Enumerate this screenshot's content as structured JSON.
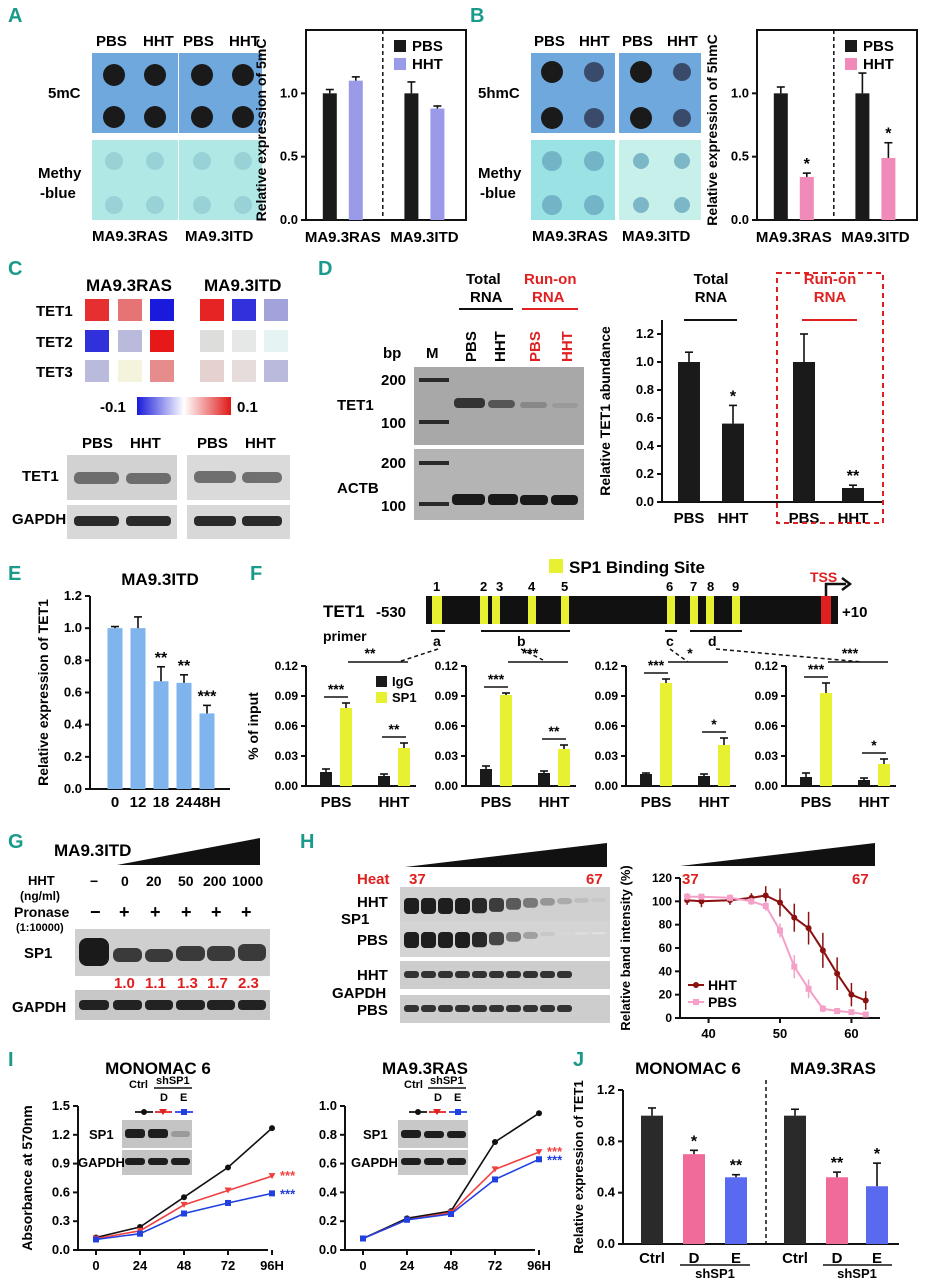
{
  "colors": {
    "panel_letter": "#1a9a8a",
    "dot_blue": "#6fa8dc",
    "dot_cyan": "#a8e4e4",
    "pbs": "#1a1a1a",
    "hht_purple": "#9a9ae8",
    "hht_pink": "#f08ab8",
    "bar_blue": "#7fb4ec",
    "sp1_yellow": "#e8f032",
    "red": "#e02020",
    "dark_red": "#8b1010",
    "light_pink": "#f4a0c8",
    "kd_d": "#f06a9a",
    "kd_e": "#5a6af0",
    "blue_curve": "#2040e0",
    "red_curve": "#f04040"
  },
  "panel_labels": {
    "a": "A",
    "b": "B",
    "c": "C",
    "d": "D",
    "e": "E",
    "f": "F",
    "g": "G",
    "h": "H",
    "i": "I",
    "j": "J"
  },
  "panelA": {
    "pbs1": "PBS",
    "hht1": "HHT",
    "pbs2": "PBS",
    "hht2": "HHT",
    "row1": "5mC",
    "row2a": "Methy",
    "row2b": "-blue",
    "cell1": "MA9.3RAS",
    "cell2": "MA9.3ITD"
  },
  "panelB": {
    "pbs1": "PBS",
    "hht1": "HHT",
    "pbs2": "PBS",
    "hht2": "HHT",
    "row1": "5hmC",
    "row2a": "Methy",
    "row2b": "-blue",
    "cell1": "MA9.3RAS",
    "cell2": "MA9.3ITD"
  },
  "panelC": {
    "cell1": "MA9.3RAS",
    "cell2": "MA9.3ITD",
    "genes": [
      "TET1",
      "TET2",
      "TET3"
    ],
    "scale_min": "-0.1",
    "scale_max": "0.1",
    "wb_pbs1": "PBS",
    "wb_hht1": "HHT",
    "wb_pbs2": "PBS",
    "wb_hht2": "HHT",
    "wb_row1": "TET1",
    "wb_row2": "GAPDH"
  },
  "panelD": {
    "total_a": "Total",
    "total_b": "RNA",
    "runon_a": "Run-on",
    "runon_b": "RNA",
    "bp": "bp",
    "marker": "M",
    "lane_pbs": "PBS",
    "lane_hht": "HHT",
    "row1": "TET1",
    "row2": "ACTB",
    "size200": "200",
    "size100": "100"
  },
  "panelE": {
    "title": "MA9.3ITD"
  },
  "panelF": {
    "legend": "SP1 Binding Site",
    "gene": "TET1",
    "start": "-530",
    "end": "+10",
    "tss": "TSS",
    "primer_label": "primer",
    "site_numbers": [
      "1",
      "2",
      "3",
      "4",
      "5",
      "6",
      "7",
      "8",
      "9"
    ],
    "primers": [
      "a",
      "b",
      "c",
      "d"
    ],
    "sig_between": [
      "**",
      "***",
      "*",
      "***"
    ]
  },
  "panelG": {
    "cell": "MA9.3ITD",
    "hht_a": "HHT",
    "hht_b": "(ng/ml)",
    "pronase_a": "Pronase",
    "pronase_b": "(1:10000)",
    "doses": [
      "−",
      "0",
      "20",
      "50",
      "200",
      "1000"
    ],
    "pronase_signs": [
      "−",
      "+",
      "+",
      "+",
      "+",
      "+"
    ],
    "row1": "SP1",
    "row2": "GAPDH",
    "ratios": [
      "1.0",
      "1.1",
      "1.3",
      "1.7",
      "2.3"
    ]
  },
  "panelH": {
    "heat": "Heat",
    "t_low": "37",
    "t_high": "67",
    "row_hht": "HHT",
    "row_pbs": "PBS",
    "sp1": "SP1",
    "gapdh": "GAPDH"
  },
  "panelI": {
    "ctrl": "Ctrl",
    "shsp1": "shSP1",
    "d": "D",
    "e": "E",
    "sp1": "SP1",
    "gapdh": "GAPDH"
  },
  "panelJ": {
    "ctrl": "Ctrl",
    "d": "D",
    "e": "E",
    "shsp1": "shSP1"
  },
  "chart_data": [
    {
      "id": "A",
      "type": "bar",
      "ylabel": "Relative expression of 5mC",
      "ylim": [
        0,
        1.5
      ],
      "yticks": [
        0.0,
        0.5,
        1.0
      ],
      "groups": [
        "MA9.3RAS",
        "MA9.3ITD"
      ],
      "series": [
        {
          "name": "PBS",
          "values": [
            1.0,
            1.0
          ],
          "errors": [
            0.03,
            0.09
          ]
        },
        {
          "name": "HHT",
          "values": [
            1.1,
            0.88
          ],
          "errors": [
            0.03,
            0.02
          ]
        }
      ],
      "legend": [
        "PBS",
        "HHT"
      ],
      "annotations": []
    },
    {
      "id": "B",
      "type": "bar",
      "ylabel": "Relative expression of 5hmC",
      "ylim": [
        0,
        1.5
      ],
      "yticks": [
        0.0,
        0.5,
        1.0
      ],
      "groups": [
        "MA9.3RAS",
        "MA9.3ITD"
      ],
      "series": [
        {
          "name": "PBS",
          "values": [
            1.0,
            1.0
          ],
          "errors": [
            0.05,
            0.16
          ]
        },
        {
          "name": "HHT",
          "values": [
            0.34,
            0.49
          ],
          "errors": [
            0.03,
            0.12
          ]
        }
      ],
      "legend": [
        "PBS",
        "HHT"
      ],
      "annotations": [
        "*",
        "*"
      ]
    },
    {
      "id": "C",
      "type": "heatmap",
      "rows": [
        "TET1",
        "TET2",
        "TET3"
      ],
      "groups": [
        "MA9.3RAS",
        "MA9.3ITD"
      ],
      "values": [
        [
          0.09,
          0.06,
          -0.1,
          0.095,
          -0.09,
          -0.04
        ],
        [
          -0.09,
          -0.03,
          0.1,
          -0.015,
          0.01,
          0.005
        ],
        [
          -0.03,
          -0.005,
          0.05,
          0.02,
          0.015,
          -0.03
        ]
      ],
      "range": [
        -0.1,
        0.1
      ]
    },
    {
      "id": "D",
      "type": "bar",
      "ylabel": "Relative TET1 abundance",
      "ylim": [
        0,
        1.3
      ],
      "yticks": [
        0.0,
        0.2,
        0.4,
        0.6,
        0.8,
        1.0,
        1.2
      ],
      "categories": [
        "PBS",
        "HHT",
        "PBS",
        "HHT"
      ],
      "group_labels": [
        "Total RNA",
        "Run-on RNA"
      ],
      "values": [
        1.0,
        0.56,
        1.0,
        0.1
      ],
      "errors": [
        0.07,
        0.13,
        0.2,
        0.02
      ],
      "annotations": [
        "",
        "*",
        "",
        "**"
      ]
    },
    {
      "id": "E",
      "type": "bar",
      "title": "MA9.3ITD",
      "ylabel": "Relative expression of TET1",
      "ylim": [
        0,
        1.2
      ],
      "yticks": [
        0.0,
        0.2,
        0.4,
        0.6,
        0.8,
        1.0,
        1.2
      ],
      "categories": [
        "0",
        "12",
        "18",
        "24",
        "48H"
      ],
      "values": [
        1.0,
        1.0,
        0.67,
        0.66,
        0.47
      ],
      "errors": [
        0.01,
        0.07,
        0.09,
        0.05,
        0.05
      ],
      "annotations": [
        "",
        "",
        "**",
        "**",
        "***"
      ]
    },
    {
      "id": "F",
      "type": "bar",
      "ylabel": "% of input",
      "ylim": [
        0,
        0.12
      ],
      "yticks": [
        0.0,
        0.03,
        0.06,
        0.09,
        0.12
      ],
      "legend": [
        "IgG",
        "SP1"
      ],
      "panels": [
        {
          "primer": "a",
          "categories": [
            "PBS",
            "HHT"
          ],
          "series": [
            {
              "name": "IgG",
              "values": [
                0.014,
                0.01
              ],
              "errors": [
                0.003,
                0.002
              ]
            },
            {
              "name": "SP1",
              "values": [
                0.078,
                0.038
              ],
              "errors": [
                0.005,
                0.005
              ]
            }
          ],
          "within": [
            "***",
            "**"
          ]
        },
        {
          "primer": "b",
          "categories": [
            "PBS",
            "HHT"
          ],
          "series": [
            {
              "name": "IgG",
              "values": [
                0.017,
                0.013
              ],
              "errors": [
                0.003,
                0.002
              ]
            },
            {
              "name": "SP1",
              "values": [
                0.091,
                0.037
              ],
              "errors": [
                0.002,
                0.004
              ]
            }
          ],
          "within": [
            "***",
            "**"
          ]
        },
        {
          "primer": "c",
          "categories": [
            "PBS",
            "HHT"
          ],
          "series": [
            {
              "name": "IgG",
              "values": [
                0.012,
                0.01
              ],
              "errors": [
                0.001,
                0.002
              ]
            },
            {
              "name": "SP1",
              "values": [
                0.103,
                0.041
              ],
              "errors": [
                0.004,
                0.007
              ]
            }
          ],
          "within": [
            "***",
            "*"
          ]
        },
        {
          "primer": "d",
          "categories": [
            "PBS",
            "HHT"
          ],
          "series": [
            {
              "name": "IgG",
              "values": [
                0.009,
                0.006
              ],
              "errors": [
                0.004,
                0.002
              ]
            },
            {
              "name": "SP1",
              "values": [
                0.093,
                0.022
              ],
              "errors": [
                0.01,
                0.005
              ]
            }
          ],
          "within": [
            "***",
            "*"
          ]
        }
      ]
    },
    {
      "id": "H",
      "type": "line",
      "ylabel": "Relative band intensity (%)",
      "ylim": [
        0,
        120
      ],
      "xlim": [
        36,
        64
      ],
      "yticks": [
        0,
        20,
        40,
        60,
        80,
        100,
        120
      ],
      "xticks": [
        40,
        50,
        60
      ],
      "series": [
        {
          "name": "HHT",
          "x": [
            37,
            39,
            43,
            46,
            48,
            50,
            52,
            54,
            56,
            58,
            60,
            62
          ],
          "y": [
            101,
            100,
            101,
            103,
            105,
            99,
            86,
            77,
            58,
            38,
            20,
            15
          ],
          "errors": [
            4,
            5,
            4,
            4,
            8,
            12,
            12,
            14,
            15,
            14,
            10,
            8
          ]
        },
        {
          "name": "PBS",
          "x": [
            37,
            39,
            43,
            46,
            48,
            50,
            52,
            54,
            56,
            58,
            60,
            62
          ],
          "y": [
            104,
            104,
            103,
            100,
            96,
            75,
            44,
            25,
            8,
            6,
            5,
            3
          ],
          "errors": [
            3,
            2,
            3,
            3,
            4,
            6,
            10,
            8,
            3,
            2,
            2,
            2
          ]
        }
      ]
    },
    {
      "id": "I1",
      "type": "line",
      "title": "MONOMAC 6",
      "ylabel": "Absorbance at 570nm",
      "ylim": [
        0,
        1.5
      ],
      "yticks": [
        0.0,
        0.3,
        0.6,
        0.9,
        1.2,
        1.5
      ],
      "x": [
        "0",
        "24",
        "48",
        "72",
        "96H"
      ],
      "series": [
        {
          "name": "Ctrl",
          "values": [
            0.13,
            0.24,
            0.55,
            0.86,
            1.27
          ]
        },
        {
          "name": "D",
          "values": [
            0.12,
            0.2,
            0.47,
            0.62,
            0.77
          ]
        },
        {
          "name": "E",
          "values": [
            0.11,
            0.17,
            0.38,
            0.49,
            0.59
          ]
        }
      ],
      "annotations": [
        "***",
        "***"
      ]
    },
    {
      "id": "I2",
      "type": "line",
      "title": "MA9.3RAS",
      "ylim": [
        0,
        1.0
      ],
      "yticks": [
        0.0,
        0.2,
        0.4,
        0.6,
        0.8,
        1.0
      ],
      "x": [
        "0",
        "24",
        "48",
        "72",
        "96H"
      ],
      "series": [
        {
          "name": "Ctrl",
          "values": [
            0.08,
            0.22,
            0.27,
            0.75,
            0.95
          ]
        },
        {
          "name": "D",
          "values": [
            0.08,
            0.21,
            0.26,
            0.56,
            0.68
          ]
        },
        {
          "name": "E",
          "values": [
            0.08,
            0.21,
            0.25,
            0.49,
            0.63
          ]
        }
      ],
      "annotations": [
        "***",
        "***"
      ]
    },
    {
      "id": "J",
      "type": "bar",
      "ylabel": "Relative expression of TET1",
      "ylim": [
        0,
        1.2
      ],
      "yticks": [
        0.0,
        0.4,
        0.8,
        1.2
      ],
      "groups": [
        "MONOMAC 6",
        "MA9.3RAS"
      ],
      "categories": [
        "Ctrl",
        "D",
        "E",
        "Ctrl",
        "D",
        "E"
      ],
      "values": [
        1.0,
        0.7,
        0.52,
        1.0,
        0.52,
        0.45
      ],
      "errors": [
        0.06,
        0.03,
        0.02,
        0.05,
        0.04,
        0.18
      ],
      "annotations": [
        "",
        "*",
        "**",
        "",
        "**",
        "*"
      ]
    }
  ]
}
